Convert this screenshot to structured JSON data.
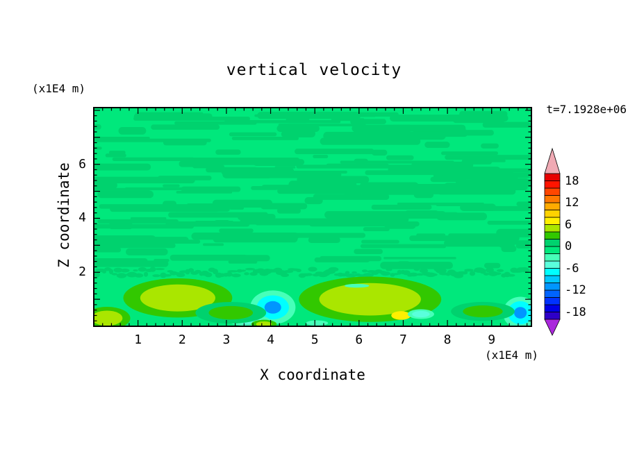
{
  "title": "vertical velocity",
  "time_label": "t=7.1928e+06",
  "axes": {
    "x": {
      "label": "X coordinate",
      "units_label": "(x1E4 m)",
      "ticks": [
        "1",
        "2",
        "3",
        "4",
        "5",
        "6",
        "7",
        "8",
        "9"
      ]
    },
    "z": {
      "label": "Z coordinate",
      "units_label": "(x1E4 m)",
      "ticks": [
        "2",
        "4",
        "6"
      ]
    }
  },
  "colorbar": {
    "tick_labels": [
      "18",
      "12",
      "6",
      "0",
      "-6",
      "-12",
      "-18"
    ],
    "tick_values": [
      18,
      12,
      6,
      0,
      -6,
      -12,
      -18
    ],
    "level_min": -20,
    "level_max": 20,
    "level_step": 2,
    "band_colors_bottom_to_top": [
      "#2e00c8",
      "#0000e6",
      "#0032ff",
      "#0064ff",
      "#0096ff",
      "#00c8ff",
      "#00ffff",
      "#5affdc",
      "#47ffb9",
      "#00e87c",
      "#00d26e",
      "#32c800",
      "#aae600",
      "#fff000",
      "#ffd200",
      "#ffaa00",
      "#ff7800",
      "#ff4600",
      "#ff1400",
      "#e60000"
    ],
    "under_arrow_color": "#aa28dc",
    "over_arrow_color": "#f0aab4"
  },
  "chart_data": {
    "type": "heatmap",
    "title": "vertical velocity",
    "xlabel": "X coordinate",
    "ylabel": "Z coordinate",
    "x_units": "x1E4 m",
    "z_units": "x1E4 m",
    "time": "t=7.1928e+06",
    "xlim": [
      0,
      9.9
    ],
    "zlim": [
      0,
      8.1
    ],
    "x_ticks": [
      1,
      2,
      3,
      4,
      5,
      6,
      7,
      8,
      9
    ],
    "z_ticks": [
      2,
      4,
      6
    ],
    "contour_levels": [
      -18,
      -16,
      -14,
      -12,
      -10,
      -8,
      -6,
      -4,
      -2,
      0,
      2,
      4,
      6,
      8,
      10,
      12,
      14,
      16,
      18
    ],
    "base_band": [
      -2,
      0
    ],
    "streak_band": [
      0,
      2
    ],
    "field_description": "Mostly near-zero vertical velocity (green bands -2..2) with horizontal turbulent streak texture above z=2; a ragged contour boundary near z=2; stronger updrafts (values 4-8, yellow-green/yellow) and downdrafts (values -12..-4, aqua/cyan/blue) concentrated below z=1.5",
    "features": [
      {
        "name": "updraft-left",
        "x": 1.9,
        "z": 1.05,
        "rx": 0.85,
        "rz": 0.5,
        "layers": [
          {
            "scale": 1.45,
            "value": 3
          },
          {
            "scale": 1.0,
            "value": 5
          }
        ]
      },
      {
        "name": "updraft-center",
        "x": 6.25,
        "z": 1.0,
        "rx": 1.15,
        "rz": 0.6,
        "layers": [
          {
            "scale": 1.4,
            "value": 3
          },
          {
            "scale": 1.0,
            "value": 5
          }
        ]
      },
      {
        "name": "yellow-spot",
        "x": 6.95,
        "z": 0.4,
        "rx": 0.22,
        "rz": 0.16,
        "layers": [
          {
            "scale": 1.0,
            "value": 7
          }
        ]
      },
      {
        "name": "updraft-bottom-left",
        "x": 0.3,
        "z": 0.3,
        "rx": 0.35,
        "rz": 0.28,
        "layers": [
          {
            "scale": 1.5,
            "value": 3
          },
          {
            "scale": 1.0,
            "value": 5
          }
        ]
      },
      {
        "name": "downdraft-x4",
        "x": 4.05,
        "z": 0.7,
        "rx": 0.27,
        "rz": 0.33,
        "layers": [
          {
            "scale": 1.9,
            "value": -3
          },
          {
            "scale": 1.35,
            "value": -7
          },
          {
            "scale": 0.7,
            "value": -11
          }
        ]
      },
      {
        "name": "downdraft-right-edge",
        "x": 9.65,
        "z": 0.5,
        "rx": 0.22,
        "rz": 0.33,
        "layers": [
          {
            "scale": 1.8,
            "value": -3
          },
          {
            "scale": 1.3,
            "value": -7
          },
          {
            "scale": 0.65,
            "value": -11
          }
        ]
      },
      {
        "name": "aqua-patch-x3.5",
        "x": 3.5,
        "z": 0.22,
        "rx": 0.3,
        "rz": 0.13,
        "layers": [
          {
            "scale": 1.6,
            "value": -3
          },
          {
            "scale": 1.0,
            "value": -5
          }
        ]
      },
      {
        "name": "aqua-patch-x7.4",
        "x": 7.4,
        "z": 0.45,
        "rx": 0.2,
        "rz": 0.12,
        "layers": [
          {
            "scale": 1.5,
            "value": -3
          },
          {
            "scale": 1.0,
            "value": -5
          }
        ]
      },
      {
        "name": "aqua-patch-x5.1",
        "x": 5.05,
        "z": 0.12,
        "rx": 0.25,
        "rz": 0.1,
        "layers": [
          {
            "scale": 1.0,
            "value": -3
          }
        ]
      },
      {
        "name": "green-blob-x3.1",
        "x": 3.1,
        "z": 0.5,
        "rx": 0.5,
        "rz": 0.25,
        "layers": [
          {
            "scale": 1.6,
            "value": 1
          },
          {
            "scale": 1.0,
            "value": 3
          }
        ]
      },
      {
        "name": "green-blob-x8.8",
        "x": 8.8,
        "z": 0.55,
        "rx": 0.45,
        "rz": 0.22,
        "layers": [
          {
            "scale": 1.6,
            "value": 1
          },
          {
            "scale": 1.0,
            "value": 3
          }
        ]
      },
      {
        "name": "updraft-bottom-x3.85",
        "x": 3.85,
        "z": 0.08,
        "rx": 0.18,
        "rz": 0.1,
        "layers": [
          {
            "scale": 1.6,
            "value": 3
          },
          {
            "scale": 1.0,
            "value": 5
          }
        ]
      },
      {
        "name": "aqua-streak-x5.95",
        "x": 5.95,
        "z": 1.5,
        "rx": 0.28,
        "rz": 0.07,
        "layers": [
          {
            "scale": 1.0,
            "value": -3
          }
        ]
      }
    ]
  }
}
